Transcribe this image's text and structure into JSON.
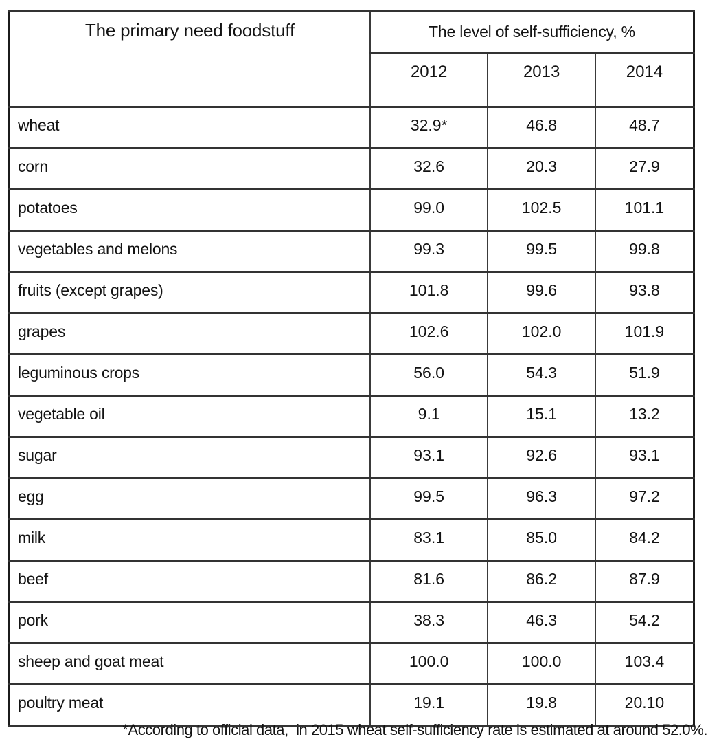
{
  "table": {
    "col1_header": "The primary need foodstuff",
    "group_header": "The level of self-sufficiency, %",
    "year_headers": [
      "2012",
      "2013",
      "2014"
    ],
    "rows": [
      {
        "foodstuff": "wheat",
        "values": [
          "32.9*",
          "46.8",
          "48.7"
        ]
      },
      {
        "foodstuff": "corn",
        "values": [
          "32.6",
          "20.3",
          "27.9"
        ]
      },
      {
        "foodstuff": "potatoes",
        "values": [
          "99.0",
          "102.5",
          "101.1"
        ]
      },
      {
        "foodstuff": "vegetables and melons",
        "values": [
          "99.3",
          "99.5",
          "99.8"
        ]
      },
      {
        "foodstuff": "fruits (except grapes)",
        "values": [
          "101.8",
          "99.6",
          "93.8"
        ]
      },
      {
        "foodstuff": "grapes",
        "values": [
          "102.6",
          "102.0",
          "101.9"
        ]
      },
      {
        "foodstuff": "leguminous crops",
        "values": [
          "56.0",
          "54.3",
          "51.9"
        ]
      },
      {
        "foodstuff": "vegetable oil",
        "values": [
          "9.1",
          "15.1",
          "13.2"
        ]
      },
      {
        "foodstuff": "sugar",
        "values": [
          "93.1",
          "92.6",
          "93.1"
        ]
      },
      {
        "foodstuff": "egg",
        "values": [
          "99.5",
          "96.3",
          "97.2"
        ]
      },
      {
        "foodstuff": "milk",
        "values": [
          "83.1",
          "85.0",
          "84.2"
        ]
      },
      {
        "foodstuff": "beef",
        "values": [
          "81.6",
          "86.2",
          "87.9"
        ]
      },
      {
        "foodstuff": "pork",
        "values": [
          "38.3",
          "46.3",
          "54.2"
        ]
      },
      {
        "foodstuff": "sheep and goat meat",
        "values": [
          "100.0",
          "100.0",
          "103.4"
        ]
      },
      {
        "foodstuff": "poultry meat",
        "values": [
          "19.1",
          "19.8",
          "20.10"
        ]
      }
    ]
  },
  "footnote": "*According to official data,  in 2015 wheat self-sufficiency rate is estimated at around 52.0%.",
  "colors": {
    "text": "#131313",
    "border": "#333333",
    "outer_border": "#1b1b1b",
    "background": "#ffffff"
  },
  "chart_data": {
    "type": "table",
    "title": "The level of self-sufficiency, %",
    "row_header_label": "The primary need foodstuff",
    "categories": [
      "wheat",
      "corn",
      "potatoes",
      "vegetables and melons",
      "fruits (except grapes)",
      "grapes",
      "leguminous crops",
      "vegetable oil",
      "sugar",
      "egg",
      "milk",
      "beef",
      "pork",
      "sheep and goat meat",
      "poultry meat"
    ],
    "series": [
      {
        "name": "2012",
        "values": [
          32.9,
          32.6,
          99.0,
          99.3,
          101.8,
          102.6,
          56.0,
          9.1,
          93.1,
          99.5,
          83.1,
          81.6,
          38.3,
          100.0,
          19.1
        ]
      },
      {
        "name": "2013",
        "values": [
          46.8,
          20.3,
          102.5,
          99.5,
          99.6,
          102.0,
          54.3,
          15.1,
          92.6,
          96.3,
          85.0,
          86.2,
          46.3,
          100.0,
          19.8
        ]
      },
      {
        "name": "2014",
        "values": [
          48.7,
          27.9,
          101.1,
          99.8,
          93.8,
          101.9,
          51.9,
          13.2,
          93.1,
          97.2,
          84.2,
          87.9,
          54.2,
          103.4,
          20.1
        ]
      }
    ],
    "annotations": [
      "wheat 2012 value 32.9 carries an asterisk footnote marker",
      "*According to official data, in 2015 wheat self-sufficiency rate is estimated at around 52.0%."
    ]
  }
}
